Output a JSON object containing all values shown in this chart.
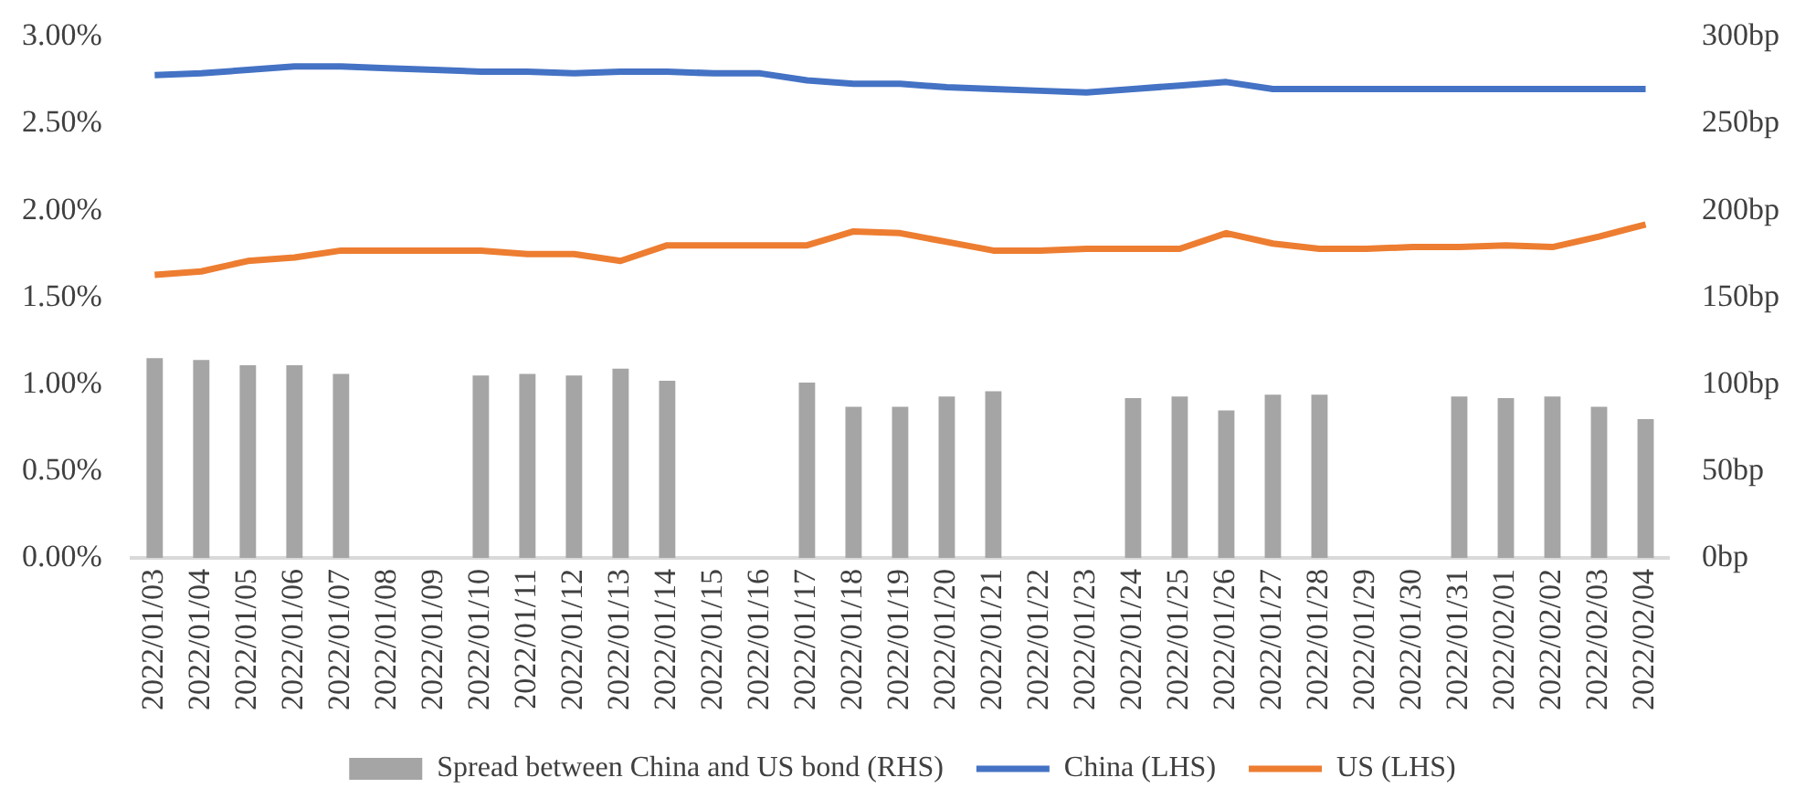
{
  "chart_data": {
    "type": "bar",
    "categories": [
      "2022/01/03",
      "2022/01/04",
      "2022/01/05",
      "2022/01/06",
      "2022/01/07",
      "2022/01/08",
      "2022/01/09",
      "2022/01/10",
      "2022/01/11",
      "2022/01/12",
      "2022/01/13",
      "2022/01/14",
      "2022/01/15",
      "2022/01/16",
      "2022/01/17",
      "2022/01/18",
      "2022/01/19",
      "2022/01/20",
      "2022/01/21",
      "2022/01/22",
      "2022/01/23",
      "2022/01/24",
      "2022/01/25",
      "2022/01/26",
      "2022/01/27",
      "2022/01/28",
      "2022/01/29",
      "2022/01/30",
      "2022/01/31",
      "2022/02/01",
      "2022/02/02",
      "2022/02/03",
      "2022/02/04"
    ],
    "series": [
      {
        "name": "Spread between China and US bond (RHS)",
        "axis": "y2",
        "color": "#a5a5a5",
        "values": [
          115,
          114,
          111,
          111,
          106,
          null,
          null,
          105,
          106,
          105,
          109,
          102,
          null,
          null,
          101,
          87,
          87,
          93,
          96,
          null,
          null,
          92,
          93,
          85,
          94,
          94,
          null,
          null,
          93,
          92,
          93,
          87,
          80
        ]
      },
      {
        "name": "China (LHS)",
        "type": "line",
        "color": "#4472c4",
        "values": [
          2.78,
          2.79,
          2.81,
          2.83,
          2.83,
          2.82,
          2.81,
          2.8,
          2.8,
          2.79,
          2.8,
          2.8,
          2.79,
          2.79,
          2.75,
          2.73,
          2.73,
          2.71,
          2.7,
          2.69,
          2.68,
          2.7,
          2.72,
          2.74,
          2.7,
          2.7,
          2.7,
          2.7,
          2.7,
          2.7,
          2.7,
          2.7,
          2.7
        ]
      },
      {
        "name": "US (LHS)",
        "type": "line",
        "color": "#ed7d31",
        "values": [
          1.63,
          1.65,
          1.71,
          1.73,
          1.77,
          1.77,
          1.77,
          1.77,
          1.75,
          1.75,
          1.71,
          1.8,
          1.8,
          1.8,
          1.8,
          1.88,
          1.87,
          1.82,
          1.77,
          1.77,
          1.78,
          1.78,
          1.78,
          1.87,
          1.81,
          1.78,
          1.78,
          1.79,
          1.79,
          1.8,
          1.79,
          1.85,
          1.92
        ]
      }
    ],
    "ylim": [
      0,
      3
    ],
    "yticks": [
      {
        "value": 0,
        "label": "0.00%"
      },
      {
        "value": 0.5,
        "label": "0.50%"
      },
      {
        "value": 1,
        "label": "1.00%"
      },
      {
        "value": 1.5,
        "label": "1.50%"
      },
      {
        "value": 2,
        "label": "2.00%"
      },
      {
        "value": 2.5,
        "label": "2.50%"
      },
      {
        "value": 3,
        "label": "3.00%"
      }
    ],
    "y2lim": [
      0,
      300
    ],
    "y2ticks": [
      {
        "value": 0,
        "label": "0bp"
      },
      {
        "value": 50,
        "label": "50bp"
      },
      {
        "value": 100,
        "label": "100bp"
      },
      {
        "value": 150,
        "label": "150bp"
      },
      {
        "value": 200,
        "label": "200bp"
      },
      {
        "value": 250,
        "label": "250bp"
      },
      {
        "value": 300,
        "label": "300bp"
      }
    ],
    "grid": false,
    "legend": "bottom"
  }
}
